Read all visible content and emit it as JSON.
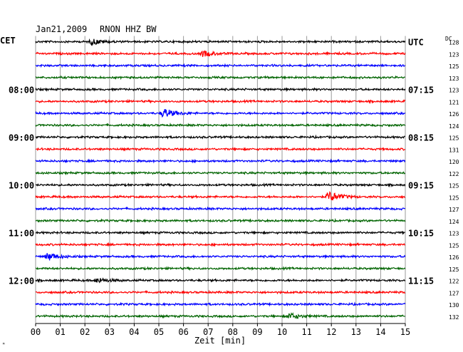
{
  "header": {
    "date": "Jan21,2009",
    "station": "RNON HHZ BW"
  },
  "left_tz": "CET",
  "right_tz": "UTC",
  "dc_label": "DC",
  "xlabel": "Zeit [min]",
  "corner_mark": "ᴹ",
  "chart_data": {
    "type": "line",
    "x_ticks": [
      "00",
      "01",
      "02",
      "03",
      "04",
      "05",
      "06",
      "07",
      "08",
      "09",
      "10",
      "11",
      "12",
      "13",
      "14",
      "15"
    ],
    "xlim": [
      0,
      15
    ],
    "rows": 24,
    "row_minutes": 15,
    "colors": [
      "#000000",
      "#ff0000",
      "#0000ff",
      "#006400"
    ],
    "left_labels": [
      {
        "row": 4,
        "text": "08:00"
      },
      {
        "row": 8,
        "text": "09:00"
      },
      {
        "row": 12,
        "text": "10:00"
      },
      {
        "row": 16,
        "text": "11:00"
      },
      {
        "row": 20,
        "text": "12:00"
      }
    ],
    "right_labels": [
      {
        "row": 0,
        "text": "UTC"
      },
      {
        "row": 4,
        "text": "07:15"
      },
      {
        "row": 8,
        "text": "08:15"
      },
      {
        "row": 12,
        "text": "09:15"
      },
      {
        "row": 16,
        "text": "10:15"
      },
      {
        "row": 20,
        "text": "11:15"
      }
    ],
    "dc_values": [
      "128",
      "123",
      "125",
      "123",
      "123",
      "121",
      "126",
      "124",
      "125",
      "131",
      "120",
      "122",
      "125",
      "125",
      "127",
      "124",
      "123",
      "125",
      "126",
      "125",
      "122",
      "127",
      "130",
      "132"
    ],
    "events": [
      {
        "row": 0,
        "minute": 2.3,
        "amp": 1.8
      },
      {
        "row": 1,
        "minute": 6.8,
        "amp": 1.8
      },
      {
        "row": 6,
        "minute": 5.2,
        "amp": 3.0
      },
      {
        "row": 13,
        "minute": 11.9,
        "amp": 3.5
      },
      {
        "row": 18,
        "minute": 0.5,
        "amp": 2.5
      },
      {
        "row": 20,
        "minute": 2.5,
        "amp": 1.6
      },
      {
        "row": 23,
        "minute": 10.3,
        "amp": 2.0
      }
    ],
    "noise_amplitude": 1.2,
    "grid": true
  }
}
